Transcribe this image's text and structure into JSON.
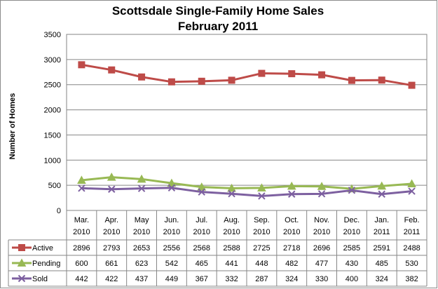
{
  "chart_data": {
    "type": "line",
    "title": "Scottsdale Single-Family Home Sales",
    "subtitle": "February 2011",
    "ylabel": "Number of Homes",
    "xlabel": "",
    "ylim": [
      0,
      3500
    ],
    "yticks": [
      0,
      500,
      1000,
      1500,
      2000,
      2500,
      3000,
      3500
    ],
    "grid": true,
    "legend": "data-table",
    "categories": [
      [
        "Mar.",
        "2010"
      ],
      [
        "Apr.",
        "2010"
      ],
      [
        "May",
        "2010"
      ],
      [
        "Jun.",
        "2010"
      ],
      [
        "Jul.",
        "2010"
      ],
      [
        "Aug.",
        "2010"
      ],
      [
        "Sep.",
        "2010"
      ],
      [
        "Oct.",
        "2010"
      ],
      [
        "Nov.",
        "2010"
      ],
      [
        "Dec.",
        "2010"
      ],
      [
        "Jan.",
        "2011"
      ],
      [
        "Feb.",
        "2011"
      ]
    ],
    "series": [
      {
        "name": "Active",
        "color": "#be4b48",
        "marker": "square",
        "values": [
          2896,
          2793,
          2653,
          2556,
          2568,
          2588,
          2725,
          2718,
          2696,
          2585,
          2591,
          2488
        ]
      },
      {
        "name": "Pending",
        "color": "#98b954",
        "marker": "triangle",
        "values": [
          600,
          661,
          623,
          542,
          465,
          441,
          448,
          482,
          477,
          430,
          485,
          530
        ]
      },
      {
        "name": "Sold",
        "color": "#7d60a0",
        "marker": "x",
        "values": [
          442,
          422,
          437,
          449,
          367,
          332,
          287,
          324,
          330,
          400,
          324,
          382
        ]
      }
    ]
  }
}
